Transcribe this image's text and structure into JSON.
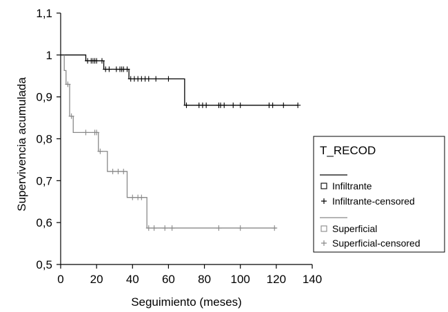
{
  "chart_data": {
    "type": "line",
    "xlabel": "Seguimiento (meses)",
    "ylabel": "Supervivencia acumulada",
    "xlim": [
      0,
      140
    ],
    "ylim": [
      0.5,
      1.1
    ],
    "x_ticks": [
      0,
      20,
      40,
      60,
      80,
      100,
      120,
      140
    ],
    "y_ticks": [
      0.5,
      0.6,
      0.7,
      0.8,
      0.9,
      1.0,
      1.1
    ],
    "x_tick_labels": [
      "0",
      "20",
      "40",
      "60",
      "80",
      "100",
      "120",
      "140"
    ],
    "y_tick_labels": [
      "0,5",
      "0,6",
      "0,7",
      "0,8",
      "0,9",
      "1",
      "1,1"
    ],
    "grid": false,
    "legend": {
      "title": "T_RECOD",
      "position": "right",
      "entries": [
        "Infiltrante",
        "Infiltrante-censored",
        "Superficial",
        "Superficial-censored"
      ]
    },
    "series": [
      {
        "name": "Infiltrante",
        "color": "#000000",
        "step": [
          [
            0,
            1.0
          ],
          [
            14,
            1.0
          ],
          [
            14,
            0.986
          ],
          [
            24,
            0.986
          ],
          [
            24,
            0.966
          ],
          [
            38,
            0.966
          ],
          [
            38,
            0.943
          ],
          [
            69,
            0.943
          ],
          [
            69,
            0.88
          ],
          [
            132,
            0.88
          ]
        ],
        "censored": [
          [
            15,
            0.986
          ],
          [
            17,
            0.986
          ],
          [
            18,
            0.986
          ],
          [
            19,
            0.986
          ],
          [
            20,
            0.986
          ],
          [
            23,
            0.986
          ],
          [
            25,
            0.966
          ],
          [
            27,
            0.966
          ],
          [
            31,
            0.966
          ],
          [
            33,
            0.966
          ],
          [
            34,
            0.966
          ],
          [
            35,
            0.966
          ],
          [
            37,
            0.966
          ],
          [
            39,
            0.943
          ],
          [
            41,
            0.943
          ],
          [
            43,
            0.943
          ],
          [
            45,
            0.943
          ],
          [
            47,
            0.943
          ],
          [
            49,
            0.943
          ],
          [
            53,
            0.943
          ],
          [
            60,
            0.943
          ],
          [
            70,
            0.88
          ],
          [
            77,
            0.88
          ],
          [
            79,
            0.88
          ],
          [
            81,
            0.88
          ],
          [
            88,
            0.88
          ],
          [
            89,
            0.88
          ],
          [
            91,
            0.88
          ],
          [
            96,
            0.88
          ],
          [
            100,
            0.88
          ],
          [
            116,
            0.88
          ],
          [
            118,
            0.88
          ],
          [
            124,
            0.88
          ],
          [
            132,
            0.88
          ]
        ]
      },
      {
        "name": "Superficial",
        "color": "#888888",
        "step": [
          [
            2,
            1.0
          ],
          [
            2,
            0.963
          ],
          [
            3,
            0.963
          ],
          [
            3,
            0.93
          ],
          [
            5,
            0.93
          ],
          [
            5,
            0.854
          ],
          [
            7,
            0.854
          ],
          [
            7,
            0.815
          ],
          [
            21,
            0.815
          ],
          [
            21,
            0.77
          ],
          [
            26,
            0.77
          ],
          [
            26,
            0.722
          ],
          [
            37,
            0.722
          ],
          [
            37,
            0.66
          ],
          [
            48,
            0.66
          ],
          [
            48,
            0.587
          ],
          [
            120,
            0.587
          ]
        ],
        "censored": [
          [
            4,
            0.93
          ],
          [
            6,
            0.854
          ],
          [
            14,
            0.815
          ],
          [
            19,
            0.815
          ],
          [
            20,
            0.815
          ],
          [
            22,
            0.77
          ],
          [
            29,
            0.722
          ],
          [
            32,
            0.722
          ],
          [
            35,
            0.722
          ],
          [
            40,
            0.66
          ],
          [
            43,
            0.66
          ],
          [
            45,
            0.66
          ],
          [
            49,
            0.587
          ],
          [
            52,
            0.587
          ],
          [
            58,
            0.587
          ],
          [
            62,
            0.587
          ],
          [
            88,
            0.587
          ],
          [
            100,
            0.587
          ],
          [
            119,
            0.587
          ]
        ]
      }
    ]
  }
}
